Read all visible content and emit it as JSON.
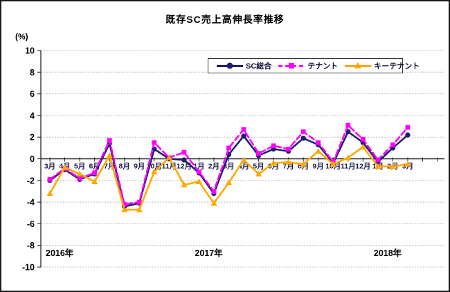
{
  "chart_data": {
    "type": "line",
    "title": "既存SC売上高伸長率推移",
    "ylabel": "(%)",
    "xlabel": "",
    "ylim": [
      -10,
      10
    ],
    "y_tick_step": 2,
    "grid": true,
    "legend_position": "top-center-inside",
    "categories": [
      "3月",
      "4月",
      "5月",
      "6月",
      "7月",
      "8月",
      "9月",
      "10月",
      "11月",
      "12月",
      "1月",
      "2月",
      "3月",
      "4月",
      "5月",
      "6月",
      "7月",
      "8月",
      "9月",
      "10月",
      "11月",
      "12月",
      "1月",
      "2月",
      "3月"
    ],
    "year_labels": [
      {
        "text": "2016年",
        "index": 0
      },
      {
        "text": "2017年",
        "index": 10
      },
      {
        "text": "2018年",
        "index": 22
      }
    ],
    "series": [
      {
        "name": "SC総合",
        "color": "#1F1F70",
        "line_style": "solid",
        "marker": "circle",
        "values": [
          -2.0,
          -1.0,
          -1.9,
          -1.4,
          1.4,
          -4.4,
          -4.1,
          0.9,
          0.0,
          -0.1,
          -1.3,
          -3.2,
          0.4,
          2.1,
          0.3,
          0.9,
          0.7,
          1.9,
          1.3,
          -0.4,
          2.5,
          1.5,
          -0.3,
          1.0,
          2.2
        ]
      },
      {
        "name": "テナント",
        "color": "#FF00FF",
        "line_style": "dashed",
        "marker": "square",
        "values": [
          -1.9,
          -0.9,
          -1.8,
          -1.3,
          1.7,
          -4.2,
          -4.0,
          1.5,
          0.1,
          0.6,
          -1.2,
          -3.0,
          1.0,
          2.7,
          0.5,
          1.2,
          0.9,
          2.5,
          1.5,
          -0.3,
          3.1,
          1.8,
          -0.1,
          1.3,
          2.9
        ]
      },
      {
        "name": "キーテナント",
        "color": "#FFA800",
        "line_style": "solid",
        "marker": "triangle",
        "values": [
          -3.2,
          -0.8,
          -1.4,
          -2.1,
          0.3,
          -4.7,
          -4.7,
          -1.2,
          0.1,
          -2.4,
          -2.1,
          -4.1,
          -2.2,
          -0.1,
          -1.4,
          -0.4,
          -0.3,
          -0.5,
          0.7,
          -0.5,
          0.1,
          1.1,
          -0.7,
          -0.7,
          -0.5
        ]
      }
    ]
  }
}
